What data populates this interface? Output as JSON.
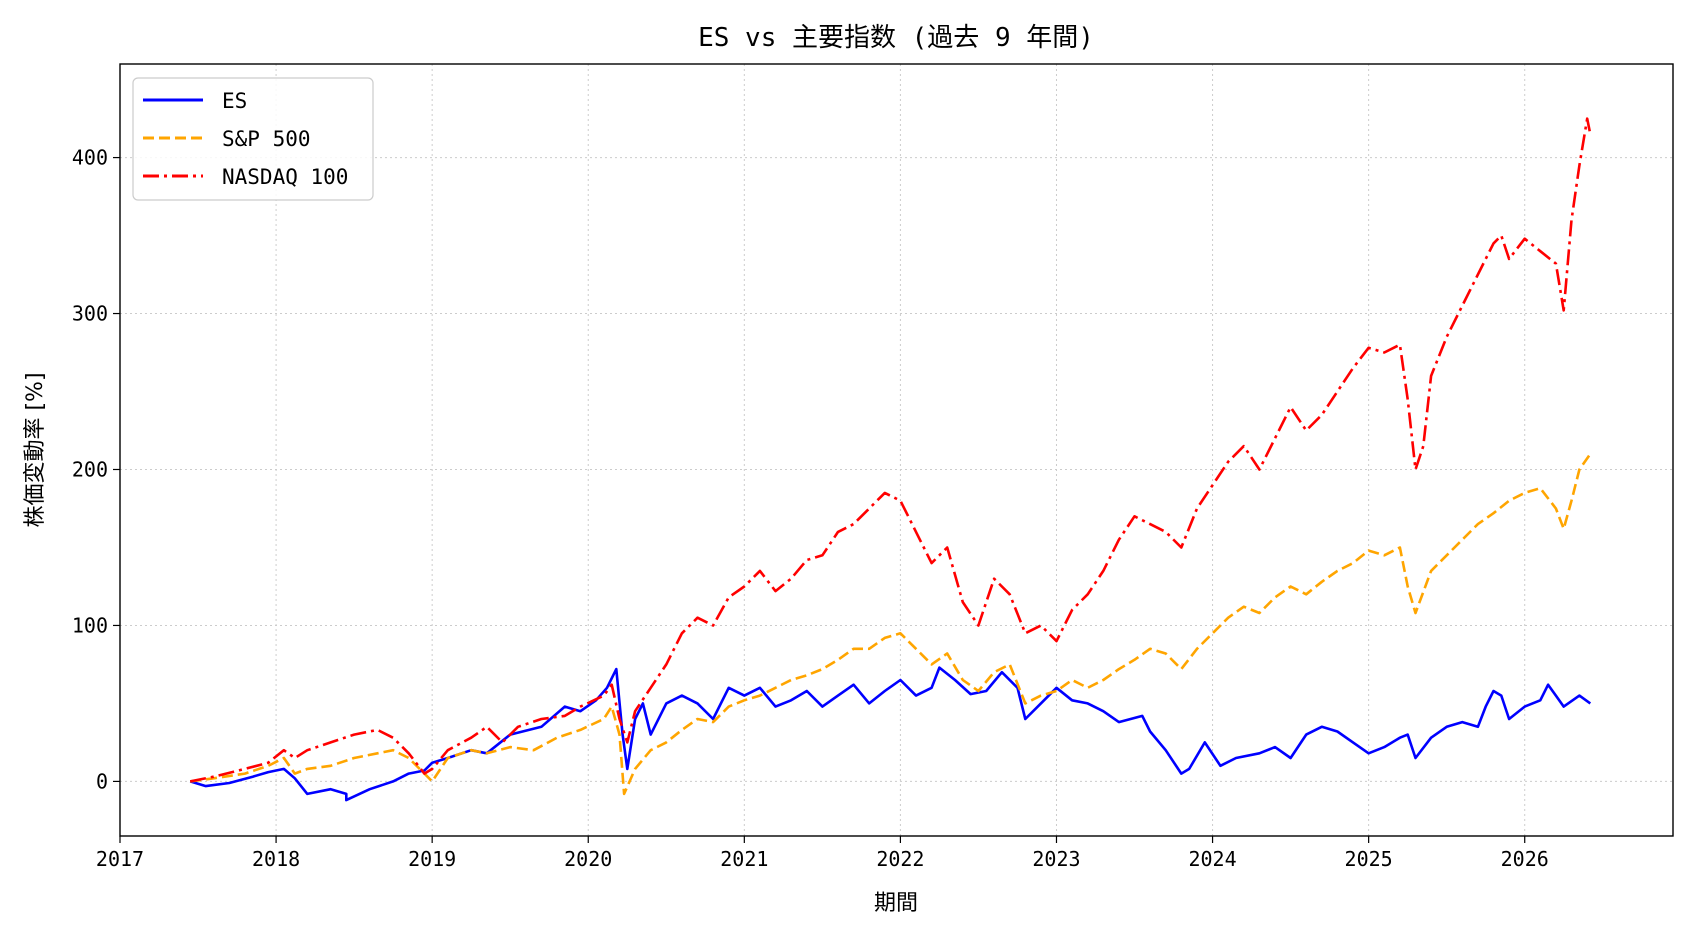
{
  "chart_data": {
    "type": "line",
    "title": "ES vs 主要指数 (過去 9 年間)",
    "xlabel": "期間",
    "ylabel": "株価変動率 [%]",
    "xlim": [
      2017.0,
      2026.95
    ],
    "ylim": [
      -35,
      460
    ],
    "x_ticks": [
      2017,
      2018,
      2019,
      2020,
      2021,
      2022,
      2023,
      2024,
      2025,
      2026
    ],
    "x_tick_labels": [
      "2017",
      "2018",
      "2019",
      "2020",
      "2021",
      "2022",
      "2023",
      "2024",
      "2025",
      "2026"
    ],
    "y_ticks": [
      0,
      100,
      200,
      300,
      400
    ],
    "y_tick_labels": [
      "0",
      "100",
      "200",
      "300",
      "400"
    ],
    "grid": true,
    "legend_position": "top-left",
    "series": [
      {
        "name": "ES",
        "color": "#0000ff",
        "style": "solid",
        "points": [
          [
            2017.45,
            0
          ],
          [
            2017.55,
            -3
          ],
          [
            2017.7,
            -1
          ],
          [
            2017.85,
            3
          ],
          [
            2017.95,
            6
          ],
          [
            2018.05,
            8
          ],
          [
            2018.12,
            2
          ],
          [
            2018.2,
            -8
          ],
          [
            2018.35,
            -5
          ],
          [
            2018.45,
            -8
          ],
          [
            2018.45,
            -12
          ],
          [
            2018.6,
            -5
          ],
          [
            2018.75,
            0
          ],
          [
            2018.85,
            5
          ],
          [
            2018.95,
            7
          ],
          [
            2019.0,
            12
          ],
          [
            2019.1,
            15
          ],
          [
            2019.25,
            20
          ],
          [
            2019.35,
            18
          ],
          [
            2019.5,
            30
          ],
          [
            2019.7,
            35
          ],
          [
            2019.85,
            48
          ],
          [
            2019.95,
            45
          ],
          [
            2020.05,
            52
          ],
          [
            2020.12,
            60
          ],
          [
            2020.18,
            72
          ],
          [
            2020.22,
            30
          ],
          [
            2020.25,
            8
          ],
          [
            2020.3,
            40
          ],
          [
            2020.35,
            50
          ],
          [
            2020.4,
            30
          ],
          [
            2020.5,
            50
          ],
          [
            2020.6,
            55
          ],
          [
            2020.7,
            50
          ],
          [
            2020.8,
            40
          ],
          [
            2020.9,
            60
          ],
          [
            2021.0,
            55
          ],
          [
            2021.1,
            60
          ],
          [
            2021.2,
            48
          ],
          [
            2021.3,
            52
          ],
          [
            2021.4,
            58
          ],
          [
            2021.5,
            48
          ],
          [
            2021.6,
            55
          ],
          [
            2021.7,
            62
          ],
          [
            2021.8,
            50
          ],
          [
            2021.9,
            58
          ],
          [
            2022.0,
            65
          ],
          [
            2022.1,
            55
          ],
          [
            2022.2,
            60
          ],
          [
            2022.25,
            73
          ],
          [
            2022.35,
            65
          ],
          [
            2022.45,
            56
          ],
          [
            2022.55,
            58
          ],
          [
            2022.65,
            70
          ],
          [
            2022.75,
            60
          ],
          [
            2022.8,
            40
          ],
          [
            2022.9,
            50
          ],
          [
            2023.0,
            60
          ],
          [
            2023.1,
            52
          ],
          [
            2023.2,
            50
          ],
          [
            2023.3,
            45
          ],
          [
            2023.4,
            38
          ],
          [
            2023.55,
            42
          ],
          [
            2023.6,
            32
          ],
          [
            2023.7,
            20
          ],
          [
            2023.8,
            5
          ],
          [
            2023.85,
            8
          ],
          [
            2023.95,
            25
          ],
          [
            2024.05,
            10
          ],
          [
            2024.15,
            15
          ],
          [
            2024.3,
            18
          ],
          [
            2024.4,
            22
          ],
          [
            2024.5,
            15
          ],
          [
            2024.6,
            30
          ],
          [
            2024.7,
            35
          ],
          [
            2024.8,
            32
          ],
          [
            2024.9,
            25
          ],
          [
            2025.0,
            18
          ],
          [
            2025.1,
            22
          ],
          [
            2025.2,
            28
          ],
          [
            2025.25,
            30
          ],
          [
            2025.3,
            15
          ],
          [
            2025.4,
            28
          ],
          [
            2025.5,
            35
          ],
          [
            2025.6,
            38
          ],
          [
            2025.7,
            35
          ],
          [
            2025.75,
            48
          ],
          [
            2025.8,
            58
          ],
          [
            2025.85,
            55
          ],
          [
            2025.9,
            40
          ],
          [
            2026.0,
            48
          ],
          [
            2026.1,
            52
          ],
          [
            2026.15,
            62
          ],
          [
            2026.2,
            55
          ],
          [
            2026.25,
            48
          ],
          [
            2026.35,
            55
          ],
          [
            2026.42,
            50
          ]
        ]
      },
      {
        "name": "S&P 500",
        "color": "#ffa500",
        "style": "dashed",
        "points": [
          [
            2017.45,
            0
          ],
          [
            2017.6,
            2
          ],
          [
            2017.8,
            5
          ],
          [
            2017.95,
            10
          ],
          [
            2018.05,
            15
          ],
          [
            2018.12,
            5
          ],
          [
            2018.2,
            8
          ],
          [
            2018.35,
            10
          ],
          [
            2018.5,
            15
          ],
          [
            2018.65,
            18
          ],
          [
            2018.75,
            20
          ],
          [
            2018.85,
            15
          ],
          [
            2018.95,
            5
          ],
          [
            2019.0,
            0
          ],
          [
            2019.1,
            15
          ],
          [
            2019.25,
            20
          ],
          [
            2019.35,
            18
          ],
          [
            2019.5,
            22
          ],
          [
            2019.65,
            20
          ],
          [
            2019.8,
            28
          ],
          [
            2019.95,
            33
          ],
          [
            2020.1,
            40
          ],
          [
            2020.15,
            48
          ],
          [
            2020.2,
            30
          ],
          [
            2020.23,
            -8
          ],
          [
            2020.3,
            8
          ],
          [
            2020.4,
            20
          ],
          [
            2020.5,
            25
          ],
          [
            2020.6,
            33
          ],
          [
            2020.7,
            40
          ],
          [
            2020.8,
            38
          ],
          [
            2020.9,
            48
          ],
          [
            2021.0,
            52
          ],
          [
            2021.1,
            55
          ],
          [
            2021.2,
            60
          ],
          [
            2021.3,
            65
          ],
          [
            2021.4,
            68
          ],
          [
            2021.5,
            72
          ],
          [
            2021.6,
            78
          ],
          [
            2021.7,
            85
          ],
          [
            2021.8,
            85
          ],
          [
            2021.9,
            92
          ],
          [
            2022.0,
            95
          ],
          [
            2022.1,
            85
          ],
          [
            2022.2,
            75
          ],
          [
            2022.3,
            82
          ],
          [
            2022.4,
            65
          ],
          [
            2022.5,
            58
          ],
          [
            2022.6,
            70
          ],
          [
            2022.7,
            75
          ],
          [
            2022.8,
            50
          ],
          [
            2022.9,
            55
          ],
          [
            2023.0,
            58
          ],
          [
            2023.1,
            65
          ],
          [
            2023.2,
            60
          ],
          [
            2023.3,
            65
          ],
          [
            2023.4,
            72
          ],
          [
            2023.5,
            78
          ],
          [
            2023.6,
            85
          ],
          [
            2023.7,
            82
          ],
          [
            2023.8,
            72
          ],
          [
            2023.9,
            85
          ],
          [
            2024.0,
            95
          ],
          [
            2024.1,
            105
          ],
          [
            2024.2,
            112
          ],
          [
            2024.3,
            108
          ],
          [
            2024.4,
            118
          ],
          [
            2024.5,
            125
          ],
          [
            2024.6,
            120
          ],
          [
            2024.7,
            128
          ],
          [
            2024.8,
            135
          ],
          [
            2024.9,
            140
          ],
          [
            2025.0,
            148
          ],
          [
            2025.1,
            145
          ],
          [
            2025.2,
            150
          ],
          [
            2025.25,
            125
          ],
          [
            2025.3,
            108
          ],
          [
            2025.4,
            135
          ],
          [
            2025.5,
            145
          ],
          [
            2025.6,
            155
          ],
          [
            2025.7,
            165
          ],
          [
            2025.8,
            172
          ],
          [
            2025.9,
            180
          ],
          [
            2026.0,
            185
          ],
          [
            2026.1,
            188
          ],
          [
            2026.2,
            175
          ],
          [
            2026.25,
            162
          ],
          [
            2026.3,
            180
          ],
          [
            2026.35,
            200
          ],
          [
            2026.42,
            210
          ]
        ]
      },
      {
        "name": "NASDAQ 100",
        "color": "#ff0000",
        "style": "dashdot",
        "points": [
          [
            2017.45,
            0
          ],
          [
            2017.6,
            3
          ],
          [
            2017.8,
            8
          ],
          [
            2017.95,
            12
          ],
          [
            2018.05,
            20
          ],
          [
            2018.12,
            15
          ],
          [
            2018.2,
            20
          ],
          [
            2018.35,
            25
          ],
          [
            2018.5,
            30
          ],
          [
            2018.65,
            33
          ],
          [
            2018.75,
            28
          ],
          [
            2018.85,
            18
          ],
          [
            2018.95,
            5
          ],
          [
            2019.0,
            8
          ],
          [
            2019.1,
            20
          ],
          [
            2019.25,
            28
          ],
          [
            2019.35,
            35
          ],
          [
            2019.45,
            25
          ],
          [
            2019.55,
            35
          ],
          [
            2019.7,
            40
          ],
          [
            2019.85,
            42
          ],
          [
            2019.95,
            48
          ],
          [
            2020.1,
            55
          ],
          [
            2020.15,
            62
          ],
          [
            2020.2,
            40
          ],
          [
            2020.25,
            25
          ],
          [
            2020.3,
            45
          ],
          [
            2020.4,
            60
          ],
          [
            2020.5,
            75
          ],
          [
            2020.6,
            95
          ],
          [
            2020.7,
            105
          ],
          [
            2020.8,
            100
          ],
          [
            2020.9,
            118
          ],
          [
            2021.0,
            125
          ],
          [
            2021.1,
            135
          ],
          [
            2021.2,
            122
          ],
          [
            2021.3,
            130
          ],
          [
            2021.4,
            142
          ],
          [
            2021.5,
            145
          ],
          [
            2021.6,
            160
          ],
          [
            2021.7,
            165
          ],
          [
            2021.8,
            175
          ],
          [
            2021.9,
            185
          ],
          [
            2022.0,
            180
          ],
          [
            2022.1,
            160
          ],
          [
            2022.2,
            140
          ],
          [
            2022.3,
            150
          ],
          [
            2022.4,
            115
          ],
          [
            2022.5,
            100
          ],
          [
            2022.6,
            130
          ],
          [
            2022.7,
            120
          ],
          [
            2022.8,
            95
          ],
          [
            2022.9,
            100
          ],
          [
            2023.0,
            90
          ],
          [
            2023.1,
            110
          ],
          [
            2023.2,
            120
          ],
          [
            2023.3,
            135
          ],
          [
            2023.4,
            155
          ],
          [
            2023.5,
            170
          ],
          [
            2023.6,
            165
          ],
          [
            2023.7,
            160
          ],
          [
            2023.8,
            150
          ],
          [
            2023.9,
            175
          ],
          [
            2024.0,
            190
          ],
          [
            2024.1,
            205
          ],
          [
            2024.2,
            215
          ],
          [
            2024.3,
            200
          ],
          [
            2024.4,
            220
          ],
          [
            2024.5,
            240
          ],
          [
            2024.6,
            225
          ],
          [
            2024.7,
            235
          ],
          [
            2024.8,
            250
          ],
          [
            2024.9,
            265
          ],
          [
            2025.0,
            278
          ],
          [
            2025.1,
            275
          ],
          [
            2025.2,
            280
          ],
          [
            2025.25,
            245
          ],
          [
            2025.3,
            200
          ],
          [
            2025.35,
            215
          ],
          [
            2025.4,
            260
          ],
          [
            2025.5,
            285
          ],
          [
            2025.6,
            305
          ],
          [
            2025.7,
            325
          ],
          [
            2025.8,
            345
          ],
          [
            2025.85,
            350
          ],
          [
            2025.9,
            335
          ],
          [
            2026.0,
            348
          ],
          [
            2026.1,
            340
          ],
          [
            2026.2,
            332
          ],
          [
            2026.25,
            302
          ],
          [
            2026.3,
            360
          ],
          [
            2026.35,
            395
          ],
          [
            2026.4,
            425
          ],
          [
            2026.42,
            415
          ]
        ]
      }
    ]
  }
}
